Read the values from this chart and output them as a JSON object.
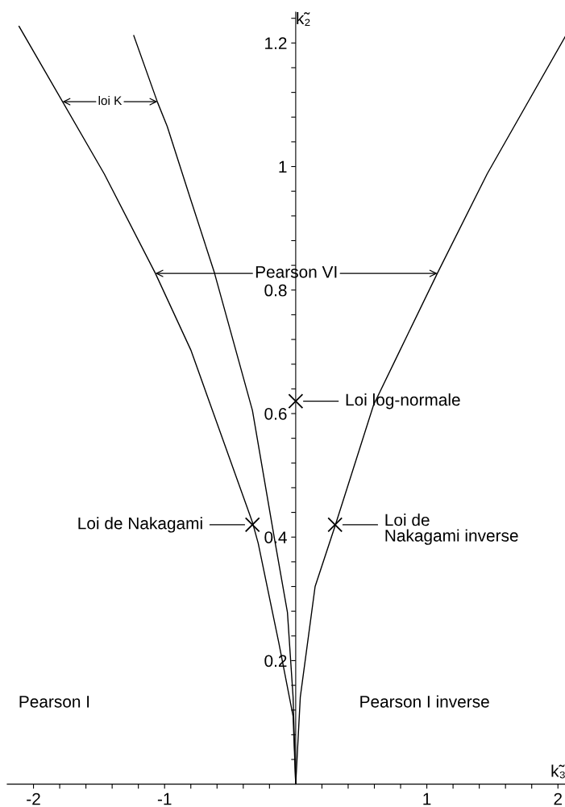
{
  "chart_data": {
    "type": "line",
    "xlabel": "k̃₃",
    "ylabel": "k̃₂",
    "xlim": [
      -2.2,
      2.06
    ],
    "ylim": [
      0,
      1.25
    ],
    "xticks": [
      -2,
      {
        "value": -1.8,
        "label": null
      },
      {
        "value": -1.6,
        "label": null
      },
      {
        "value": -1.4,
        "label": null
      },
      {
        "value": -1.2,
        "label": null
      },
      -1,
      {
        "value": -0.8,
        "label": null
      },
      {
        "value": -0.6,
        "label": null
      },
      {
        "value": -0.4,
        "label": null
      },
      {
        "value": -0.2,
        "label": null
      },
      {
        "value": 0.2,
        "label": null
      },
      {
        "value": 0.4,
        "label": null
      },
      {
        "value": 0.6,
        "label": null
      },
      {
        "value": 0.8,
        "label": null
      },
      1,
      {
        "value": 1.2,
        "label": null
      },
      {
        "value": 1.4,
        "label": null
      },
      {
        "value": 1.6,
        "label": null
      },
      {
        "value": 1.8,
        "label": null
      },
      2
    ],
    "yticks": [
      {
        "value": 0.04,
        "label": null
      },
      {
        "value": 0.08,
        "label": null
      },
      {
        "value": 0.12,
        "label": null
      },
      {
        "value": 0.16,
        "label": null
      },
      0.2,
      {
        "value": 0.24,
        "label": null
      },
      {
        "value": 0.28,
        "label": null
      },
      {
        "value": 0.32,
        "label": null
      },
      {
        "value": 0.36,
        "label": null
      },
      0.4,
      {
        "value": 0.44,
        "label": null
      },
      {
        "value": 0.48,
        "label": null
      },
      {
        "value": 0.52,
        "label": null
      },
      {
        "value": 0.56,
        "label": null
      },
      0.6,
      {
        "value": 0.64,
        "label": null
      },
      {
        "value": 0.68,
        "label": null
      },
      {
        "value": 0.72,
        "label": null
      },
      {
        "value": 0.76,
        "label": null
      },
      0.8,
      {
        "value": 0.84,
        "label": null
      },
      {
        "value": 0.88,
        "label": null
      },
      {
        "value": 0.92,
        "label": null
      },
      {
        "value": 0.96,
        "label": null
      },
      1,
      {
        "value": 1.04,
        "label": null
      },
      {
        "value": 1.08,
        "label": null
      },
      {
        "value": 1.12,
        "label": null
      },
      {
        "value": 1.16,
        "label": null
      },
      1.2,
      {
        "value": 1.24,
        "label": null
      }
    ],
    "grid": false,
    "marker": "none",
    "line_style": "solid",
    "series": [
      {
        "color": "#000000",
        "x": [
          -2.11,
          -1.46,
          -1.07,
          -0.8,
          -0.33,
          -0.286,
          -0.13,
          -0.02,
          0
        ],
        "values": [
          1.227,
          0.988,
          0.827,
          0.703,
          0.424,
          0.39,
          0.23,
          0.11,
          0
        ]
      },
      {
        "color": "#000000",
        "x": [
          -1.235,
          -1.054,
          -0.98,
          -0.8,
          -0.62,
          -0.33,
          -0.16,
          -0.063,
          -0.02,
          0
        ],
        "values": [
          1.212,
          1.104,
          1.065,
          0.946,
          0.828,
          0.605,
          0.395,
          0.278,
          0.141,
          0
        ]
      },
      {
        "color": "#000000",
        "x": [
          2.06,
          1.46,
          1.08,
          0.79,
          0.594,
          0.3,
          0.148,
          0.035,
          0
        ],
        "values": [
          1.212,
          0.988,
          0.827,
          0.7,
          0.614,
          0.418,
          0.32,
          0.141,
          0
        ]
      },
      {
        "type": "scatter",
        "marker": "cross",
        "color": "#000000",
        "x": [
          0,
          -0.33,
          0.3
        ],
        "values": [
          0.62,
          0.42,
          0.42
        ]
      }
    ],
    "annotations": [
      {
        "text": "loi K",
        "x": -1.055,
        "y": 1.105
      },
      {
        "text": "Pearson VI",
        "x": 1.08,
        "y": 0.827
      },
      "Loi log-normale",
      "Loi de Nakagami",
      "Loi de\nNakagami inverse",
      "Pearson I",
      "Pearson I inverse"
    ]
  }
}
